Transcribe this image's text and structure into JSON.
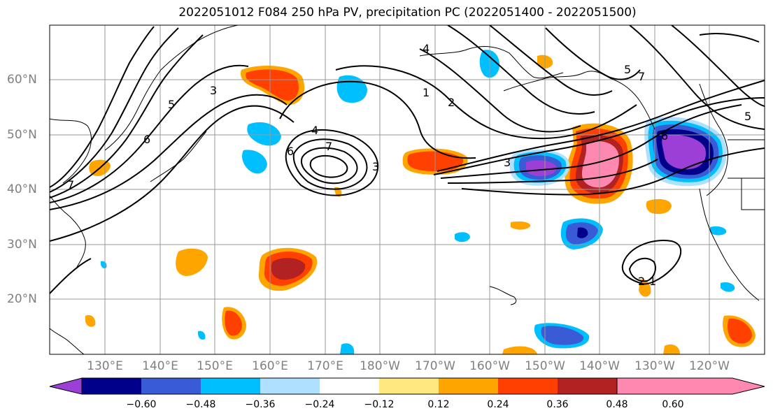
{
  "title": "2022051012 F084 250 hPa PV, precipitation PC (2022051400 - 2022051500)",
  "latitude_labels": [
    "60°N",
    "50°N",
    "40°N",
    "30°N",
    "20°N"
  ],
  "longitude_labels": [
    "130°E",
    "140°E",
    "150°E",
    "160°E",
    "170°E",
    "180°W",
    "170°W",
    "160°W",
    "150°W",
    "140°W",
    "130°W",
    "120°W"
  ],
  "colorbar": {
    "colors": [
      "#9b3fd6",
      "#00008b",
      "#3a5bd6",
      "#00bfff",
      "#b0e0ff",
      "#ffffff",
      "#ffe880",
      "#ffa500",
      "#ff4000",
      "#b22222",
      "#ff88b0"
    ],
    "tick_labels": [
      "−0.60",
      "−0.48",
      "−0.36",
      "−0.24",
      "−0.12",
      "0.12",
      "0.24",
      "0.36",
      "0.48",
      "0.60"
    ]
  },
  "pv_contour_labels": [
    "1",
    "2",
    "3",
    "4",
    "5",
    "6",
    "7"
  ]
}
